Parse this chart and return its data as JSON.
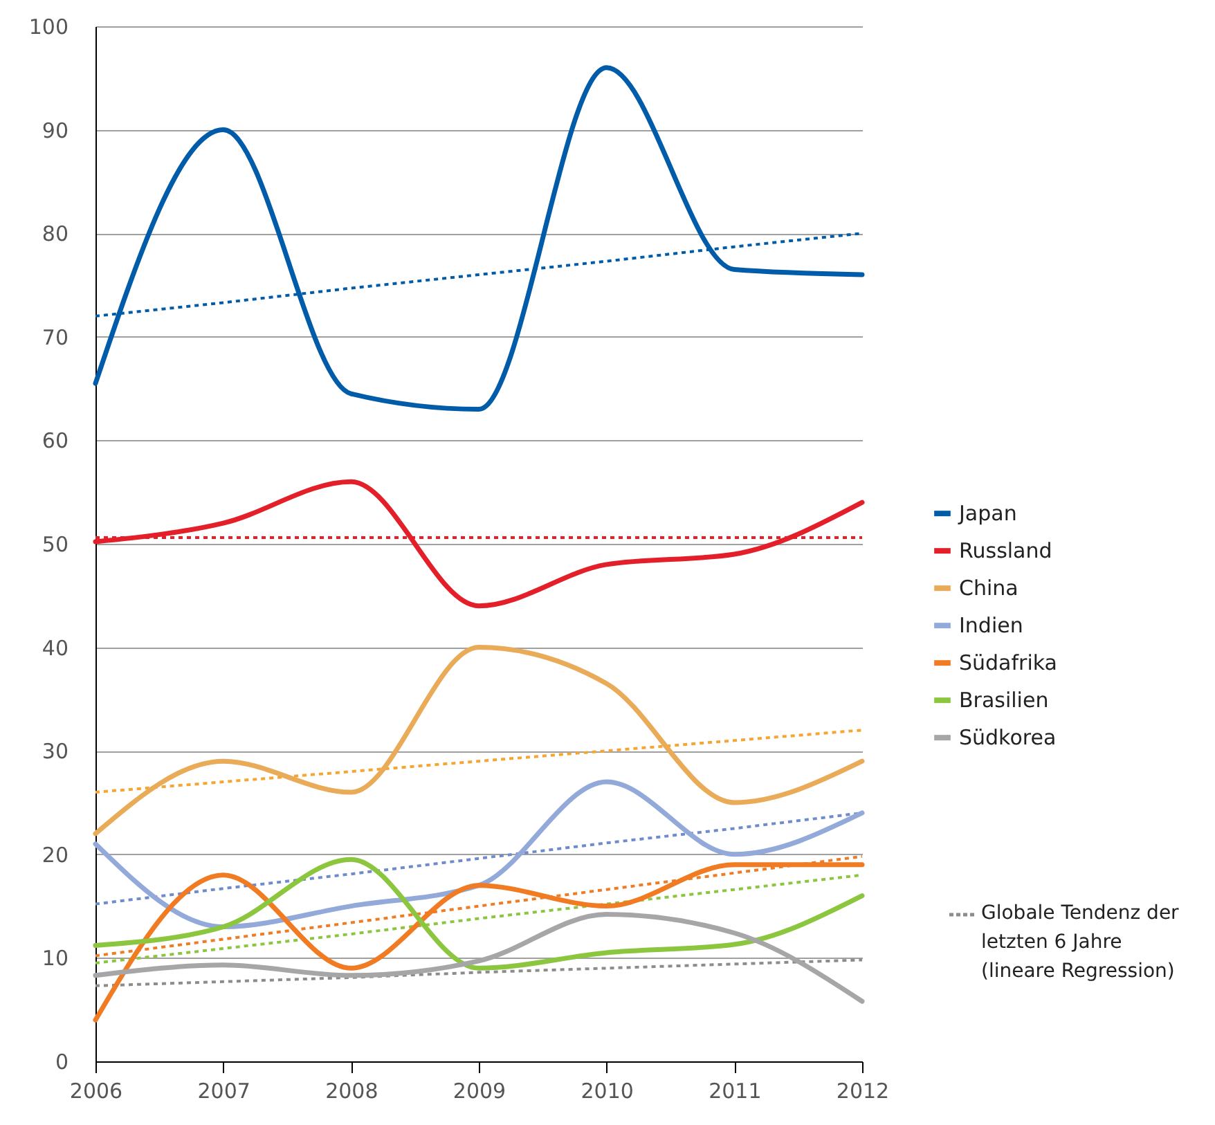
{
  "chart_data": {
    "type": "line",
    "x": [
      2006,
      2007,
      2008,
      2009,
      2010,
      2011,
      2012
    ],
    "xlim": [
      2006,
      2012
    ],
    "xticks": [
      2006,
      2007,
      2008,
      2009,
      2010,
      2011,
      2012
    ],
    "ylim": [
      0,
      100
    ],
    "yticks": [
      0,
      10,
      20,
      30,
      40,
      50,
      60,
      70,
      80,
      90,
      100
    ],
    "grid": "y",
    "legend": "right",
    "line_style": "solid",
    "marker": "none",
    "series": [
      {
        "name": "Japan",
        "color": "#005ca9",
        "values": [
          65.5,
          90,
          64.5,
          63,
          96,
          76.5,
          76
        ]
      },
      {
        "name": "Russland",
        "color": "#e3202a",
        "values": [
          50.2,
          52,
          56,
          44,
          48,
          49,
          54
        ]
      },
      {
        "name": "China",
        "color": "#e9ab58",
        "values": [
          22,
          29,
          26,
          40,
          36.5,
          25,
          29
        ]
      },
      {
        "name": "Indien",
        "color": "#92a9d9",
        "values": [
          21,
          13,
          15,
          17,
          27,
          20,
          24
        ]
      },
      {
        "name": "Südafrika",
        "color": "#f07b22",
        "values": [
          4,
          18,
          9,
          17,
          15,
          19,
          19
        ]
      },
      {
        "name": "Brasilien",
        "color": "#8cc63f",
        "values": [
          11.2,
          13,
          19.5,
          9,
          10.5,
          11.3,
          16
        ]
      },
      {
        "name": "Südkorea",
        "color": "#a6a6a8",
        "values": [
          8.3,
          9.3,
          8.3,
          9.7,
          14.2,
          12.4,
          5.8
        ]
      },
      {
        "type": "line",
        "line_style": "dotted",
        "color": "#005ca9",
        "values": [
          72,
          73.3,
          74.7,
          76,
          77.3,
          78.7,
          80
        ]
      },
      {
        "type": "line",
        "line_style": "dotted",
        "color": "#e3202a",
        "values": [
          50.6,
          50.6,
          50.6,
          50.6,
          50.6,
          50.6,
          50.6
        ]
      },
      {
        "type": "line",
        "line_style": "dotted",
        "color": "#f5a530",
        "values": [
          26,
          27,
          28,
          29,
          30,
          31,
          32
        ]
      },
      {
        "type": "line",
        "line_style": "dotted",
        "color": "#6e8ccc",
        "values": [
          15.2,
          16.7,
          18.1,
          19.6,
          21.1,
          22.5,
          24
        ]
      },
      {
        "type": "line",
        "line_style": "dotted",
        "color": "#f07b22",
        "values": [
          10.2,
          11.8,
          13.4,
          15,
          16.6,
          18.2,
          19.8
        ]
      },
      {
        "type": "line",
        "line_style": "dotted",
        "color": "#8cc63f",
        "values": [
          9.5,
          10.9,
          12.3,
          13.8,
          15.2,
          16.6,
          18
        ]
      },
      {
        "type": "line",
        "line_style": "dotted",
        "color": "#8c8c8c",
        "values": [
          7.3,
          7.7,
          8.1,
          8.6,
          9,
          9.4,
          9.8
        ]
      }
    ],
    "annotations": [
      "Globale Tendenz der letzten 6 Jahre (lineare Regression)"
    ]
  }
}
